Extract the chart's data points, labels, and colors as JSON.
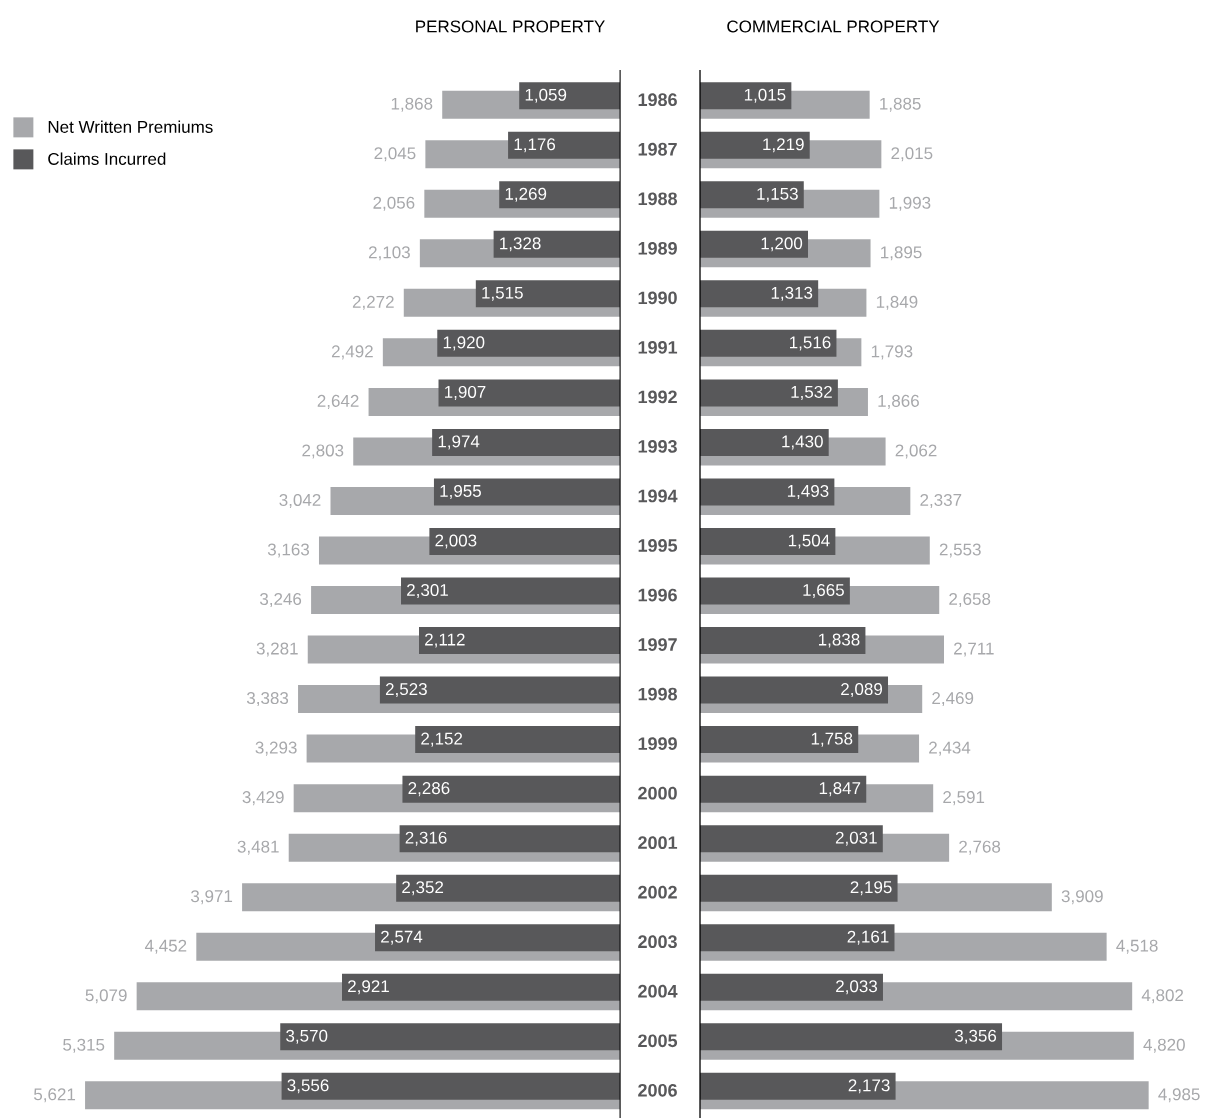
{
  "chart_data": [
    {
      "type": "bar",
      "orientation": "horizontal",
      "title": "PERSONAL PROPERTY",
      "legend": "top left",
      "tick_labels": "y",
      "categories": [
        "1986",
        "1987",
        "1988",
        "1989",
        "1990",
        "1991",
        "1992",
        "1993",
        "1994",
        "1995",
        "1996",
        "1997",
        "1998",
        "1999",
        "2000",
        "2001",
        "2002",
        "2003",
        "2004",
        "2005",
        "2006"
      ],
      "series": [
        {
          "name": "Net Written Premiums",
          "color": "#a7a8ab",
          "values": [
            1868,
            2045,
            2056,
            2103,
            2272,
            2492,
            2642,
            2803,
            3042,
            3163,
            3246,
            3281,
            3383,
            3293,
            3429,
            3481,
            3971,
            4452,
            5079,
            5315,
            5621
          ],
          "value_labels": [
            "1,868",
            "2,045",
            "2,056",
            "2,103",
            "2,272",
            "2,492",
            "2,642",
            "2,803",
            "3,042",
            "3,163",
            "3,246",
            "3,281",
            "3,383",
            "3,293",
            "3,429",
            "3,481",
            "3,971",
            "4,452",
            "5,079",
            "5,315",
            "5,621"
          ]
        },
        {
          "name": "Claims Incurred",
          "color": "#58585a",
          "values": [
            1059,
            1176,
            1269,
            1328,
            1515,
            1920,
            1907,
            1974,
            1955,
            2003,
            2301,
            2112,
            2523,
            2152,
            2286,
            2316,
            2352,
            2574,
            2921,
            3570,
            3556
          ],
          "value_labels": [
            "1,059",
            "1,176",
            "1,269",
            "1,328",
            "1,515",
            "1,920",
            "1,907",
            "1,974",
            "1,955",
            "2,003",
            "2,301",
            "2,112",
            "2,523",
            "2,152",
            "2,286",
            "2,316",
            "2,352",
            "2,574",
            "2,921",
            "3,570",
            "3,556"
          ]
        }
      ]
    },
    {
      "type": "bar",
      "orientation": "horizontal",
      "title": "COMMERCIAL PROPERTY",
      "tick_labels": false,
      "categories": [
        "1986",
        "1987",
        "1988",
        "1989",
        "1990",
        "1991",
        "1992",
        "1993",
        "1994",
        "1995",
        "1996",
        "1997",
        "1998",
        "1999",
        "2000",
        "2001",
        "2002",
        "2003",
        "2004",
        "2005",
        "2006"
      ],
      "series": [
        {
          "color": "#a7a8ab",
          "values": [
            1885,
            2015,
            1993,
            1895,
            1849,
            1793,
            1866,
            2062,
            2337,
            2553,
            2658,
            2711,
            2469,
            2434,
            2591,
            2768,
            3909,
            4518,
            4802,
            4820,
            4985
          ],
          "value_labels": [
            "1,885",
            "2,015",
            "1,993",
            "1,895",
            "1,849",
            "1,793",
            "1,866",
            "2,062",
            "2,337",
            "2,553",
            "2,658",
            "2,711",
            "2,469",
            "2,434",
            "2,591",
            "2,768",
            "3,909",
            "4,518",
            "4,802",
            "4,820",
            "4,985"
          ]
        },
        {
          "color": "#58585a",
          "values": [
            1015,
            1219,
            1153,
            1200,
            1313,
            1516,
            1532,
            1430,
            1493,
            1504,
            1665,
            1838,
            2089,
            1758,
            1847,
            2031,
            2195,
            2161,
            2033,
            3356,
            2173
          ],
          "value_labels": [
            "1,015",
            "1,219",
            "1,153",
            "1,200",
            "1,313",
            "1,516",
            "1,532",
            "1,430",
            "1,493",
            "1,504",
            "1,665",
            "1,838",
            "2,089",
            "1,758",
            "1,847",
            "2,031",
            "2,195",
            "2,161",
            "2,033",
            "3,356",
            "2,173"
          ]
        }
      ]
    }
  ]
}
